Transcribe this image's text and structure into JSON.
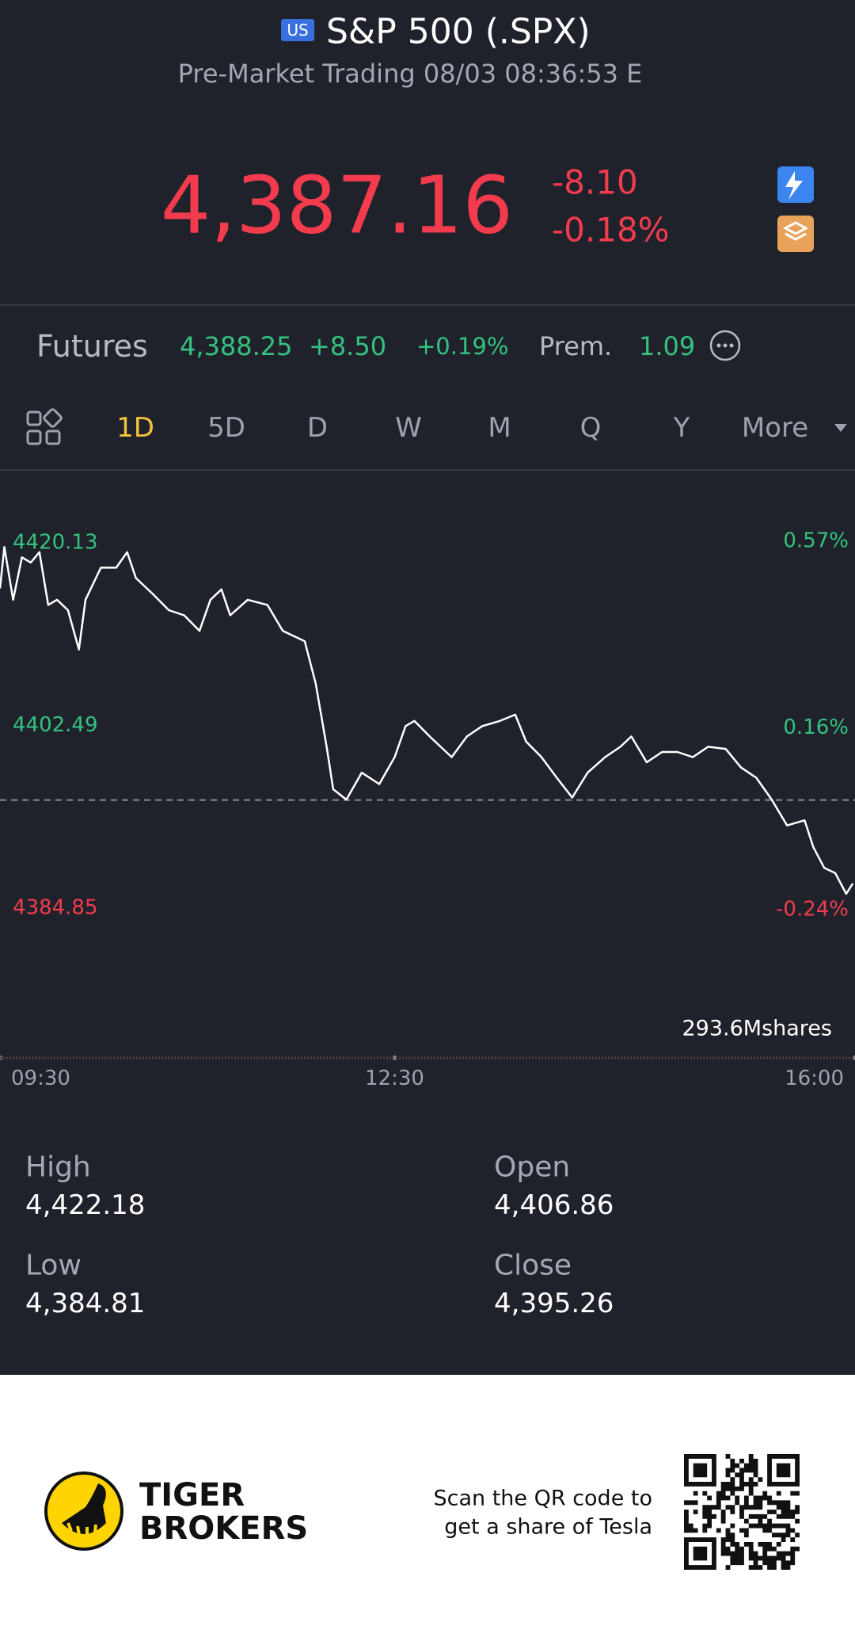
{
  "header": {
    "badge": "US",
    "title": "S&P 500 (.SPX)",
    "subtitle": "Pre-Market Trading 08/03 08:36:53 E"
  },
  "quote": {
    "price": "4,387.16",
    "change": "-8.10",
    "change_pct": "-0.18%"
  },
  "futures": {
    "label": "Futures",
    "price": "4,388.25",
    "change": "+8.50",
    "change_pct": "+0.19%",
    "prem_label": "Prem.",
    "prem": "1.09"
  },
  "tabs": {
    "items": [
      "1D",
      "5D",
      "D",
      "W",
      "M",
      "Q",
      "Y",
      "More"
    ],
    "active": 0
  },
  "chart_data": {
    "type": "line",
    "x": [
      570,
      572,
      576,
      580,
      584,
      588,
      592,
      596,
      601,
      606,
      609,
      616,
      623,
      628,
      632,
      640,
      647,
      654,
      661,
      666,
      671,
      675,
      683,
      692,
      699,
      709,
      714,
      719,
      722,
      728,
      735,
      743,
      750,
      755,
      759,
      766,
      771,
      776,
      783,
      790,
      798,
      805,
      810,
      817,
      824,
      831,
      838,
      846,
      853,
      858,
      865,
      872,
      879,
      886,
      893,
      901,
      908,
      915,
      922,
      929,
      937,
      941,
      946,
      951,
      956,
      959
    ],
    "values": [
      4415.7,
      4419.7,
      4414.6,
      4418.7,
      4418.2,
      4419.2,
      4414.1,
      4414.6,
      4413.6,
      4409.8,
      4414.6,
      4417.7,
      4417.7,
      4419.2,
      4416.7,
      4415.1,
      4413.6,
      4413.1,
      4411.6,
      4414.6,
      4415.6,
      4413.1,
      4414.6,
      4414.1,
      4411.6,
      4410.6,
      4406.5,
      4400.4,
      4396.3,
      4395.3,
      4397.9,
      4396.8,
      4399.4,
      4402.4,
      4402.9,
      4401.4,
      4400.4,
      4399.4,
      4401.4,
      4402.4,
      4402.9,
      4403.5,
      4400.9,
      4399.4,
      4397.4,
      4395.5,
      4397.9,
      4399.4,
      4400.4,
      4401.4,
      4398.9,
      4399.9,
      4399.9,
      4399.4,
      4400.4,
      4400.2,
      4398.4,
      4397.4,
      4395.3,
      4392.8,
      4393.3,
      4390.7,
      4388.7,
      4388.2,
      4386.2,
      4387.2
    ],
    "color": "#ffffff",
    "baseline": 4395.26,
    "xlim": [
      570,
      960
    ],
    "xticks": [
      {
        "value": 570,
        "label": "09:30"
      },
      {
        "value": 750,
        "label": "12:30"
      },
      {
        "value": 960,
        "label": "16:00"
      }
    ],
    "ylim": [
      4380,
      4425
    ],
    "yticks": [
      4420.13,
      4402.49,
      4384.85
    ],
    "y2lim": [
      -0.347,
      0.677
    ],
    "y2ticks": [
      {
        "value": 0.57,
        "label": "0.57%"
      },
      {
        "value": 0.16,
        "label": "0.16%"
      },
      {
        "value": -0.24,
        "label": "-0.24%"
      }
    ],
    "grid": false,
    "volume_label": "293.6Mshares"
  },
  "stats": [
    {
      "label": "High",
      "value": "4,422.18"
    },
    {
      "label": "Open",
      "value": "4,406.86"
    },
    {
      "label": "Low",
      "value": "4,384.81"
    },
    {
      "label": "Close",
      "value": "4,395.26"
    }
  ],
  "footer": {
    "brand": [
      "TIGER",
      "BROKERS"
    ],
    "promo": [
      "Scan the QR code to",
      "get a share of Tesla"
    ]
  }
}
